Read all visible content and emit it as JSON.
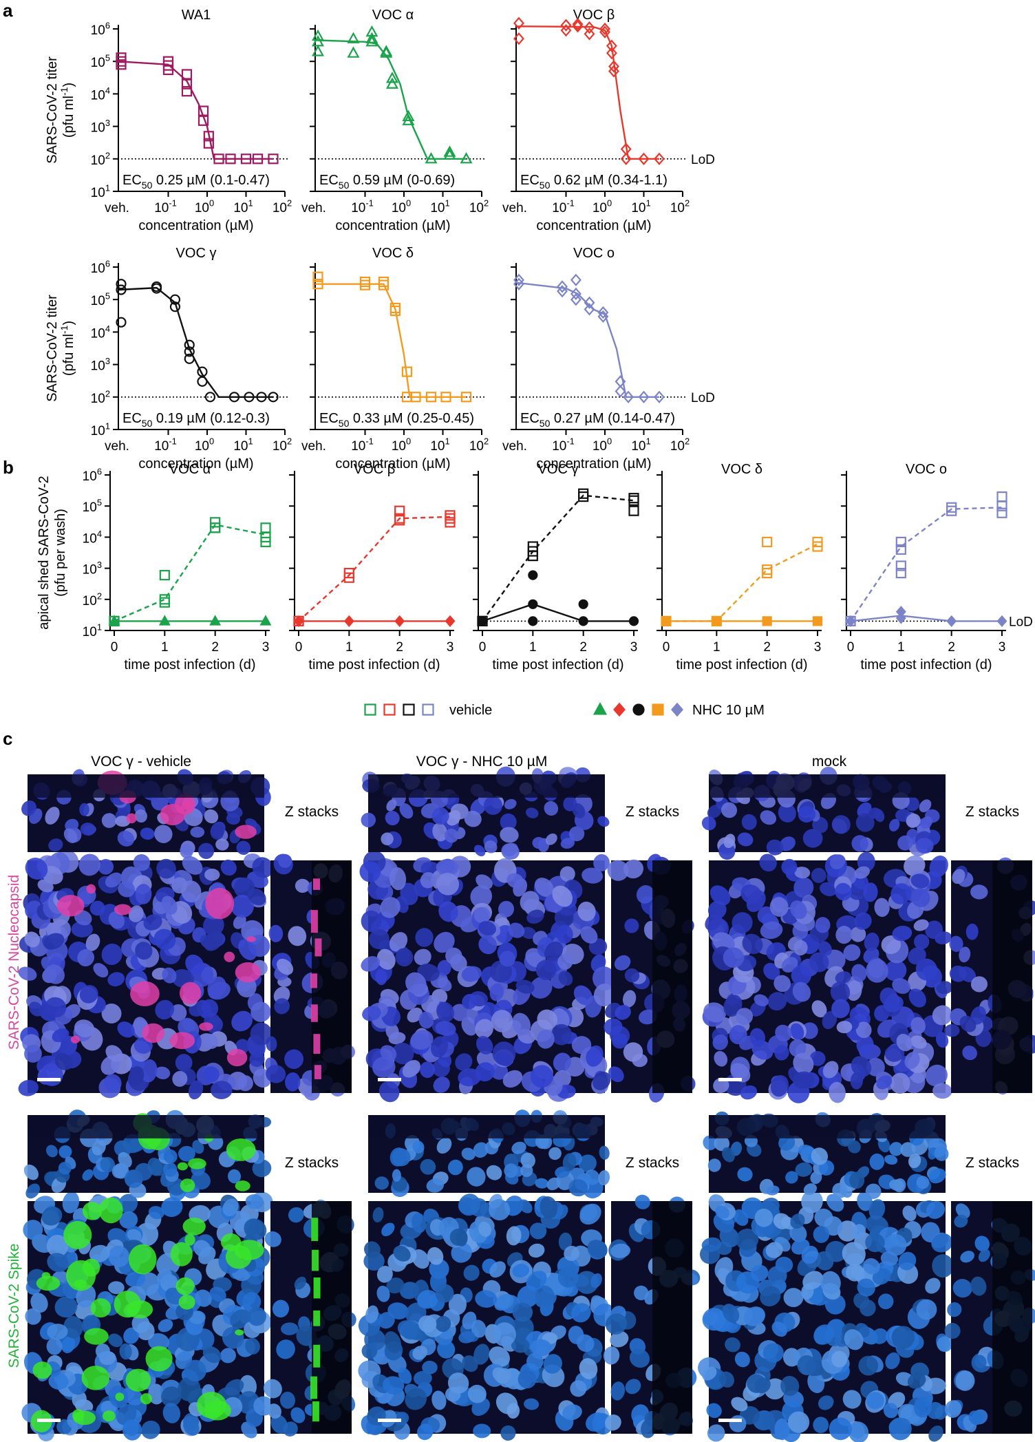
{
  "panels": {
    "a": "a",
    "b": "b",
    "c": "c"
  },
  "colors": {
    "WA1": "#a0185f",
    "alpha": "#1aa34a",
    "beta": "#e8372c",
    "gamma": "#111111",
    "delta": "#f39a1d",
    "omicron": "#7c84c8",
    "nuclei": "#3342c8",
    "nucleocapsid": "#e040a8",
    "spike": "#39e62a"
  },
  "text_a": {
    "ylabel": "SARS-CoV-2 titer",
    "ylabel2": "(pfu ml⁻¹)",
    "xlabel": "concentration (µM)",
    "veh": "veh.",
    "lod": "LoD"
  },
  "text_b": {
    "ylabel": "apical shed SARS-CoV-2",
    "ylabel2": "(pfu per wash)",
    "xlabel": "time post infection (d)",
    "lod": "LoD",
    "legend_vehicle": "vehicle",
    "legend_nhc": "NHC 10 µM"
  },
  "text_c": {
    "col_titles": [
      "VOC γ - vehicle",
      "VOC γ - NHC 10 µM",
      "mock"
    ],
    "zstacks": "Z stacks",
    "row_labels": [
      "SARS-CoV-2 Nucleocapsid",
      "SARS-CoV-2 Spike"
    ]
  },
  "chart_data": [
    {
      "type": "scatter",
      "panel": "a",
      "title": "WA1",
      "marker": "square",
      "color_key": "WA1",
      "xlabel": "concentration (µM)",
      "ylabel": "SARS-CoV-2 titer (pfu ml⁻¹)",
      "x_scale": "log",
      "y_scale": "log",
      "xlim": [
        0.01,
        100
      ],
      "ylim": [
        10,
        1000000
      ],
      "x_ticks": [
        "10⁻¹",
        "10⁰",
        "10¹",
        "10²"
      ],
      "y_ticks": [
        "10¹",
        "10²",
        "10³",
        "10⁴",
        "10⁵",
        "10⁶"
      ],
      "lod": 100,
      "points": [
        [
          "veh.",
          130000
        ],
        [
          "veh.",
          100000
        ],
        [
          "veh.",
          80000
        ],
        [
          0.1,
          100000
        ],
        [
          0.1,
          75000
        ],
        [
          0.1,
          55000
        ],
        [
          0.3,
          40000
        ],
        [
          0.3,
          20000
        ],
        [
          0.3,
          12000
        ],
        [
          0.8,
          3000
        ],
        [
          0.8,
          1500
        ],
        [
          1.1,
          500
        ],
        [
          1.1,
          300
        ],
        [
          2,
          100
        ],
        [
          4,
          100
        ],
        [
          10,
          100
        ],
        [
          20,
          100
        ],
        [
          50,
          100
        ]
      ],
      "curve": [
        [
          "veh.",
          100000
        ],
        [
          0.1,
          80000
        ],
        [
          0.3,
          25000
        ],
        [
          0.6,
          5000
        ],
        [
          1.0,
          1000
        ],
        [
          1.5,
          100
        ],
        [
          50,
          100
        ]
      ],
      "annotation": "EC50 0.25 µM (0.1-0.47)"
    },
    {
      "type": "scatter",
      "panel": "a",
      "title": "VOC α",
      "marker": "triangle",
      "color_key": "alpha",
      "xlabel": "concentration (µM)",
      "x_scale": "log",
      "y_scale": "log",
      "xlim": [
        0.01,
        100
      ],
      "ylim": [
        10,
        1000000
      ],
      "x_ticks": [
        "10⁻¹",
        "10⁰",
        "10¹",
        "10²"
      ],
      "lod": 100,
      "points": [
        [
          "veh.",
          600000
        ],
        [
          "veh.",
          400000
        ],
        [
          "veh.",
          200000
        ],
        [
          0.05,
          500000
        ],
        [
          0.05,
          180000
        ],
        [
          0.15,
          800000
        ],
        [
          0.15,
          500000
        ],
        [
          0.15,
          400000
        ],
        [
          0.35,
          200000
        ],
        [
          0.35,
          180000
        ],
        [
          0.5,
          30000
        ],
        [
          0.5,
          20000
        ],
        [
          1.3,
          2000
        ],
        [
          1.3,
          1500
        ],
        [
          5,
          100
        ],
        [
          15,
          160
        ],
        [
          15,
          130
        ],
        [
          40,
          100
        ]
      ],
      "curve": [
        [
          "veh.",
          450000
        ],
        [
          0.1,
          400000
        ],
        [
          0.2,
          350000
        ],
        [
          0.4,
          120000
        ],
        [
          0.8,
          20000
        ],
        [
          1.3,
          2000
        ],
        [
          4,
          100
        ],
        [
          40,
          100
        ]
      ],
      "annotation": "EC50 0.59 µM (0-0.69)"
    },
    {
      "type": "scatter",
      "panel": "a",
      "title": "VOC β",
      "marker": "diamond",
      "color_key": "beta",
      "xlabel": "concentration (µM)",
      "x_scale": "log",
      "y_scale": "log",
      "xlim": [
        0.01,
        100
      ],
      "ylim": [
        10,
        1000000
      ],
      "x_ticks": [
        "10⁻¹",
        "10⁰",
        "10¹",
        "10²"
      ],
      "lod": 100,
      "points": [
        [
          "veh.",
          1500000
        ],
        [
          "veh.",
          500000
        ],
        [
          0.1,
          1300000
        ],
        [
          0.1,
          900000
        ],
        [
          0.2,
          1400000
        ],
        [
          0.2,
          1200000
        ],
        [
          0.4,
          1100000
        ],
        [
          0.4,
          700000
        ],
        [
          1.0,
          1000000
        ],
        [
          1.0,
          800000
        ],
        [
          1.5,
          300000
        ],
        [
          1.5,
          180000
        ],
        [
          1.7,
          70000
        ],
        [
          1.7,
          50000
        ],
        [
          3.5,
          200
        ],
        [
          3.5,
          100
        ],
        [
          10,
          100
        ],
        [
          25,
          100
        ]
      ],
      "curve": [
        [
          "veh.",
          1200000
        ],
        [
          0.5,
          1150000
        ],
        [
          1.0,
          900000
        ],
        [
          1.5,
          300000
        ],
        [
          2.5,
          3000
        ],
        [
          4,
          100
        ],
        [
          25,
          100
        ]
      ],
      "annotation": "EC50 0.62 µM (0.34-1.1)"
    },
    {
      "type": "scatter",
      "panel": "a",
      "title": "VOC γ",
      "marker": "circle",
      "color_key": "gamma",
      "xlabel": "concentration (µM)",
      "ylabel": "SARS-CoV-2 titer (pfu ml⁻¹)",
      "x_scale": "log",
      "y_scale": "log",
      "xlim": [
        0.01,
        100
      ],
      "ylim": [
        10,
        1000000
      ],
      "x_ticks": [
        "10⁻¹",
        "10⁰",
        "10¹",
        "10²"
      ],
      "y_ticks": [
        "10¹",
        "10²",
        "10³",
        "10⁴",
        "10⁵",
        "10⁶"
      ],
      "lod": 100,
      "points": [
        [
          "veh.",
          300000
        ],
        [
          "veh.",
          200000
        ],
        [
          "veh.",
          20000
        ],
        [
          0.05,
          250000
        ],
        [
          0.05,
          220000
        ],
        [
          0.15,
          100000
        ],
        [
          0.15,
          60000
        ],
        [
          0.35,
          4000
        ],
        [
          0.35,
          2500
        ],
        [
          0.35,
          1500
        ],
        [
          0.75,
          600
        ],
        [
          0.75,
          300
        ],
        [
          1.2,
          100
        ],
        [
          5,
          100
        ],
        [
          12,
          100
        ],
        [
          25,
          100
        ],
        [
          50,
          100
        ]
      ],
      "curve": [
        [
          "veh.",
          200000
        ],
        [
          0.05,
          230000
        ],
        [
          0.15,
          80000
        ],
        [
          0.35,
          3000
        ],
        [
          0.75,
          500
        ],
        [
          2,
          100
        ],
        [
          50,
          100
        ]
      ],
      "annotation": "EC50 0.19 µM (0.12-0.3)"
    },
    {
      "type": "scatter",
      "panel": "a",
      "title": "VOC δ",
      "marker": "square",
      "color_key": "delta",
      "xlabel": "concentration (µM)",
      "x_scale": "log",
      "y_scale": "log",
      "xlim": [
        0.01,
        100
      ],
      "ylim": [
        10,
        1000000
      ],
      "x_ticks": [
        "10⁻¹",
        "10⁰",
        "10¹",
        "10²"
      ],
      "lod": 100,
      "points": [
        [
          "veh.",
          500000
        ],
        [
          "veh.",
          300000
        ],
        [
          0.1,
          350000
        ],
        [
          0.1,
          280000
        ],
        [
          0.3,
          350000
        ],
        [
          0.3,
          280000
        ],
        [
          0.6,
          55000
        ],
        [
          0.6,
          45000
        ],
        [
          1.2,
          600
        ],
        [
          1.2,
          100
        ],
        [
          2,
          100
        ],
        [
          5,
          100
        ],
        [
          12,
          100
        ],
        [
          40,
          100
        ]
      ],
      "curve": [
        [
          "veh.",
          300000
        ],
        [
          0.3,
          300000
        ],
        [
          0.6,
          50000
        ],
        [
          1.0,
          2000
        ],
        [
          1.4,
          100
        ],
        [
          40,
          100
        ]
      ],
      "annotation": "EC50 0.33 µM (0.25-0.45)"
    },
    {
      "type": "scatter",
      "panel": "a",
      "title": "VOC o",
      "marker": "diamond",
      "color_key": "omicron",
      "xlabel": "concentration (µM)",
      "x_scale": "log",
      "y_scale": "log",
      "xlim": [
        0.01,
        100
      ],
      "ylim": [
        10,
        1000000
      ],
      "x_ticks": [
        "10⁻¹",
        "10⁰",
        "10¹",
        "10²"
      ],
      "lod": 100,
      "points": [
        [
          "veh.",
          400000
        ],
        [
          "veh.",
          300000
        ],
        [
          0.08,
          250000
        ],
        [
          0.08,
          180000
        ],
        [
          0.18,
          400000
        ],
        [
          0.18,
          150000
        ],
        [
          0.18,
          100000
        ],
        [
          0.4,
          80000
        ],
        [
          0.4,
          50000
        ],
        [
          0.9,
          40000
        ],
        [
          0.9,
          30000
        ],
        [
          2.5,
          300
        ],
        [
          2.5,
          150
        ],
        [
          4,
          100
        ],
        [
          10,
          100
        ],
        [
          25,
          100
        ]
      ],
      "curve": [
        [
          "veh.",
          330000
        ],
        [
          0.1,
          220000
        ],
        [
          0.2,
          150000
        ],
        [
          0.5,
          50000
        ],
        [
          1.0,
          35000
        ],
        [
          2,
          3000
        ],
        [
          3.5,
          100
        ],
        [
          25,
          100
        ]
      ],
      "annotation": "EC50 0.27 µM (0.14-0.47)"
    },
    {
      "type": "scatter",
      "panel": "b",
      "title": "VOC α",
      "color_key": "alpha",
      "xlabel": "time post infection (d)",
      "ylabel": "apical shed SARS-CoV-2 (pfu per wash)",
      "xlim": [
        0,
        3
      ],
      "ylim": [
        10,
        1000000
      ],
      "y_scale": "log",
      "lod": 20,
      "vehicle_points": [
        [
          0,
          20
        ],
        [
          0,
          20
        ],
        [
          1,
          600
        ],
        [
          1,
          100
        ],
        [
          1,
          80
        ],
        [
          2,
          30000
        ],
        [
          2,
          20000
        ],
        [
          2,
          20000
        ],
        [
          3,
          20000
        ],
        [
          3,
          10000
        ],
        [
          3,
          7000
        ]
      ],
      "vehicle_mean": [
        [
          0,
          20
        ],
        [
          1,
          100
        ],
        [
          2,
          25000
        ],
        [
          3,
          12000
        ]
      ],
      "nhc_points": [
        [
          0,
          20
        ],
        [
          1,
          20
        ],
        [
          2,
          20
        ],
        [
          3,
          20
        ]
      ],
      "nhc_mean": [
        [
          0,
          20
        ],
        [
          1,
          20
        ],
        [
          2,
          20
        ],
        [
          3,
          20
        ]
      ]
    },
    {
      "type": "scatter",
      "panel": "b",
      "title": "VOC β",
      "color_key": "beta",
      "xlabel": "time post infection (d)",
      "xlim": [
        0,
        3
      ],
      "ylim": [
        10,
        1000000
      ],
      "y_scale": "log",
      "lod": 20,
      "vehicle_points": [
        [
          0,
          20
        ],
        [
          0,
          20
        ],
        [
          1,
          700
        ],
        [
          1,
          500
        ],
        [
          2,
          70000
        ],
        [
          2,
          40000
        ],
        [
          2,
          35000
        ],
        [
          3,
          50000
        ],
        [
          3,
          40000
        ],
        [
          3,
          30000
        ]
      ],
      "vehicle_mean": [
        [
          0,
          20
        ],
        [
          1,
          600
        ],
        [
          2,
          40000
        ],
        [
          3,
          45000
        ]
      ],
      "nhc_points": [
        [
          0,
          20
        ],
        [
          1,
          20
        ],
        [
          2,
          20
        ],
        [
          3,
          20
        ]
      ],
      "nhc_mean": [
        [
          0,
          20
        ],
        [
          1,
          20
        ],
        [
          2,
          20
        ],
        [
          3,
          20
        ]
      ]
    },
    {
      "type": "scatter",
      "panel": "b",
      "title": "VOC γ",
      "color_key": "gamma",
      "xlabel": "time post infection (d)",
      "xlim": [
        0,
        3
      ],
      "ylim": [
        10,
        1000000
      ],
      "y_scale": "log",
      "lod": 20,
      "vehicle_points": [
        [
          0,
          20
        ],
        [
          0,
          20
        ],
        [
          1,
          5000
        ],
        [
          1,
          3500
        ],
        [
          1,
          2500
        ],
        [
          2,
          250000
        ],
        [
          2,
          200000
        ],
        [
          3,
          180000
        ],
        [
          3,
          150000
        ],
        [
          3,
          70000
        ]
      ],
      "vehicle_mean": [
        [
          0,
          20
        ],
        [
          1,
          3500
        ],
        [
          2,
          220000
        ],
        [
          3,
          150000
        ]
      ],
      "nhc_points": [
        [
          0,
          20
        ],
        [
          1,
          600
        ],
        [
          1,
          70
        ],
        [
          1,
          20
        ],
        [
          2,
          70
        ],
        [
          2,
          20
        ],
        [
          3,
          20
        ]
      ],
      "nhc_mean": [
        [
          0,
          20
        ],
        [
          1,
          70
        ],
        [
          2,
          20
        ],
        [
          3,
          20
        ]
      ]
    },
    {
      "type": "scatter",
      "panel": "b",
      "title": "VOC δ",
      "color_key": "delta",
      "xlabel": "time post infection (d)",
      "xlim": [
        0,
        3
      ],
      "ylim": [
        10,
        1000000
      ],
      "y_scale": "log",
      "lod": 20,
      "vehicle_points": [
        [
          0,
          20
        ],
        [
          1,
          20
        ],
        [
          2,
          7000
        ],
        [
          2,
          900
        ],
        [
          2,
          700
        ],
        [
          3,
          7000
        ],
        [
          3,
          5000
        ]
      ],
      "vehicle_mean": [
        [
          0,
          20
        ],
        [
          1,
          20
        ],
        [
          2,
          900
        ],
        [
          3,
          6000
        ]
      ],
      "nhc_points": [
        [
          0,
          20
        ],
        [
          1,
          20
        ],
        [
          2,
          20
        ],
        [
          3,
          20
        ]
      ],
      "nhc_mean": [
        [
          0,
          20
        ],
        [
          1,
          20
        ],
        [
          2,
          20
        ],
        [
          3,
          20
        ]
      ]
    },
    {
      "type": "scatter",
      "panel": "b",
      "title": "VOC o",
      "color_key": "omicron",
      "xlabel": "time post infection (d)",
      "xlim": [
        0,
        3
      ],
      "ylim": [
        10,
        1000000
      ],
      "y_scale": "log",
      "lod": 20,
      "vehicle_points": [
        [
          0,
          20
        ],
        [
          0,
          20
        ],
        [
          1,
          7000
        ],
        [
          1,
          4000
        ],
        [
          1,
          1200
        ],
        [
          1,
          700
        ],
        [
          2,
          90000
        ],
        [
          2,
          70000
        ],
        [
          3,
          200000
        ],
        [
          3,
          100000
        ],
        [
          3,
          60000
        ]
      ],
      "vehicle_mean": [
        [
          0,
          20
        ],
        [
          1,
          5000
        ],
        [
          2,
          80000
        ],
        [
          3,
          90000
        ]
      ],
      "nhc_points": [
        [
          0,
          20
        ],
        [
          1,
          40
        ],
        [
          1,
          25
        ],
        [
          2,
          20
        ],
        [
          3,
          20
        ]
      ],
      "nhc_mean": [
        [
          0,
          20
        ],
        [
          1,
          30
        ],
        [
          2,
          20
        ],
        [
          3,
          20
        ]
      ]
    }
  ]
}
